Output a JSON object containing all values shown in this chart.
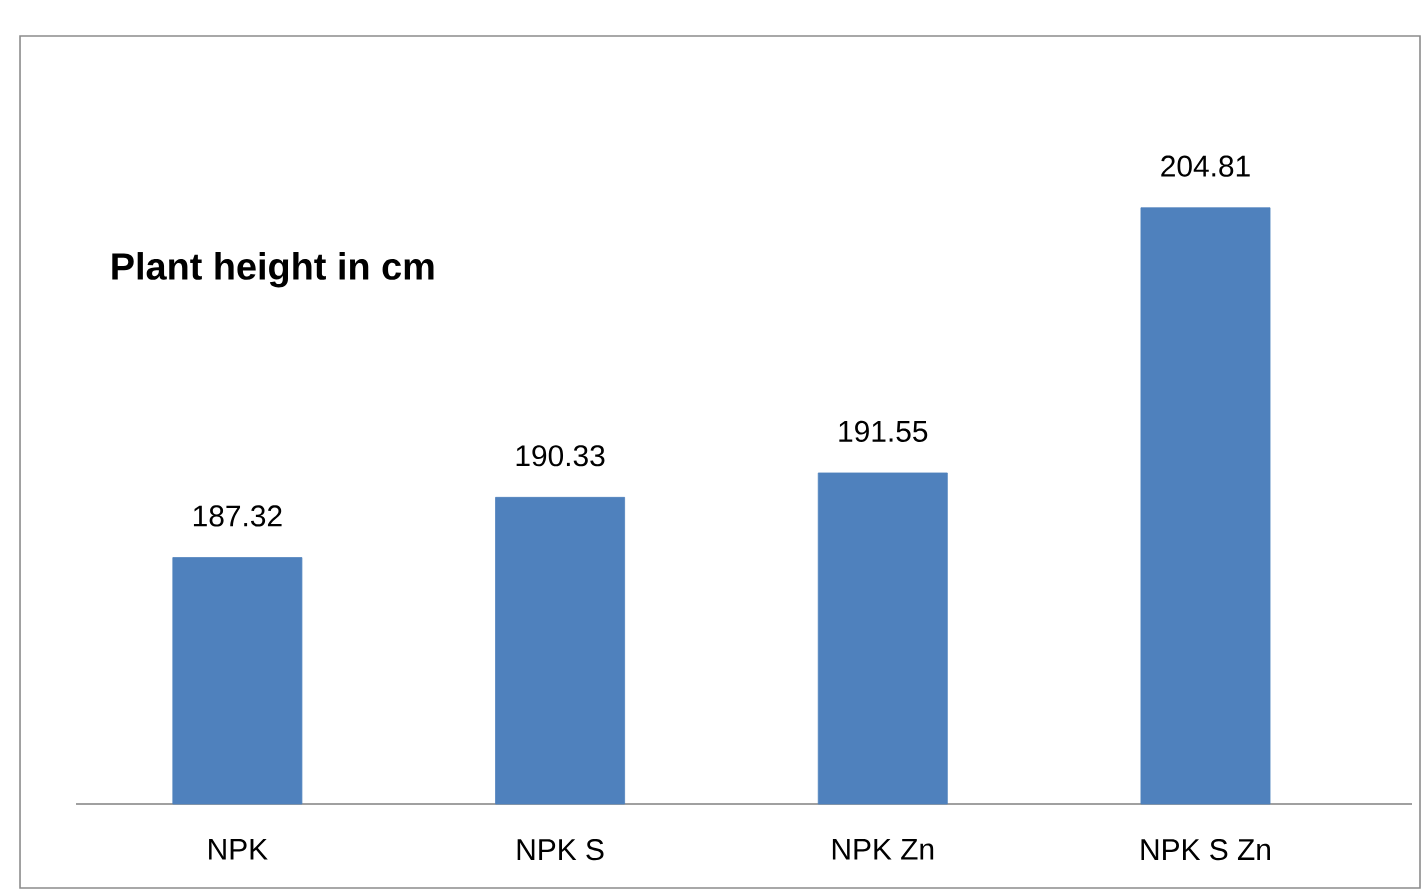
{
  "chart_data": {
    "type": "bar",
    "title": "Plant height in cm",
    "categories": [
      "NPK",
      "NPK S",
      "NPK Zn",
      "NPK S Zn"
    ],
    "values": [
      187.32,
      190.33,
      191.55,
      204.81
    ],
    "color": "#4f81bd",
    "ylim": [
      175,
      213.4
    ],
    "tick_labels": "x",
    "data_labels": true,
    "grid": false
  }
}
